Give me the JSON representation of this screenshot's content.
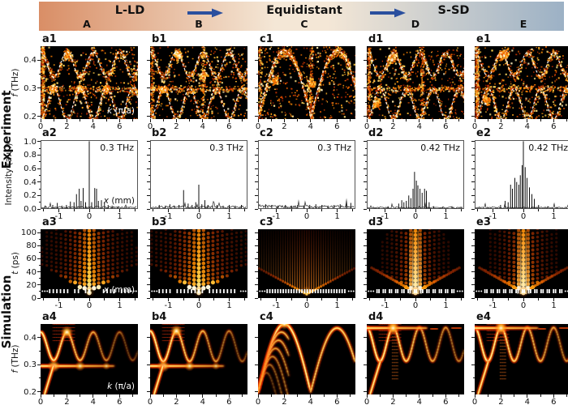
{
  "header": {
    "phases": [
      {
        "label": "L-LD"
      },
      {
        "label": "Equidistant"
      },
      {
        "label": "S-SD"
      }
    ],
    "letters": [
      "A",
      "B",
      "C",
      "D",
      "E"
    ],
    "arrow_color": "#2a4f9e",
    "gradient": [
      "#d98e66",
      "#f4e7d6",
      "#9cb1c5"
    ]
  },
  "side_labels": {
    "experiment": "Experiment",
    "simulation": "Simulation"
  },
  "axes": {
    "rows": [
      {
        "yvar": "f",
        "yrest": " (THz)",
        "ytickvals": [
          0.4,
          0.3,
          0.2
        ],
        "yticks": [
          "0.4",
          "0.3",
          "0.2"
        ],
        "ylim": [
          0.19,
          0.45
        ],
        "xtickvals": [
          0,
          2,
          4,
          6
        ],
        "xticks": [
          "0",
          "2",
          "4",
          "6"
        ],
        "xlim": [
          0,
          7.4
        ],
        "xvar": "k",
        "xrest": " (π/a)"
      },
      {
        "yvar": "",
        "yrest": "Intensity (a.u.)",
        "ytickvals": [
          1.0,
          0.8,
          0.6,
          0.4,
          0.2,
          0.0
        ],
        "yticks": [
          "1.0",
          "0.8",
          "0.6",
          "0.4",
          "0.2",
          "0.0"
        ],
        "ylim": [
          0,
          1.02
        ],
        "xtickvals": [
          -1,
          0,
          1
        ],
        "xticks": [
          "-1",
          "0",
          "1"
        ],
        "xlim": [
          -1.6,
          1.6
        ],
        "xvar": "x",
        "xrest": " (mm)"
      },
      {
        "yvar": "t",
        "yrest": " (ps)",
        "ytickvals": [
          100,
          80,
          60,
          40,
          20,
          0
        ],
        "yticks": [
          "100",
          "80",
          "60",
          "40",
          "20",
          "0"
        ],
        "ylim": [
          0,
          105
        ],
        "xtickvals": [
          -1,
          0,
          1
        ],
        "xticks": [
          "-1",
          "0",
          "1"
        ],
        "xlim": [
          -1.6,
          1.6
        ],
        "xvar": "x",
        "xrest": " (mm)"
      },
      {
        "yvar": "f",
        "yrest": " (THz)",
        "ytickvals": [
          0.4,
          0.3,
          0.2
        ],
        "yticks": [
          "0.4",
          "0.3",
          "0.2"
        ],
        "ylim": [
          0.19,
          0.45
        ],
        "xtickvals": [
          0,
          2,
          4,
          6
        ],
        "xticks": [
          "0",
          "2",
          "4",
          "6"
        ],
        "xlim": [
          0,
          7.4
        ],
        "xvar": "k",
        "xrest": " (π/a)"
      }
    ]
  },
  "chart_data": [
    {
      "label": "a1",
      "row": 1,
      "col": 0,
      "type": "heatmap",
      "style": "exp_dispersion",
      "seed": 101,
      "hband": true,
      "curves": [
        {
          "kind": "cos",
          "base": 0.385,
          "amp": 0.045,
          "phase": 0
        },
        {
          "kind": "cos",
          "base": 0.245,
          "amp": 0.055,
          "phase": 1
        }
      ],
      "columns": [
        0.12
      ],
      "hot": [
        [
          0.9,
          0.3
        ],
        [
          2.9,
          0.3
        ],
        [
          4.9,
          0.3
        ],
        [
          2.0,
          0.42
        ]
      ],
      "noise": 1500
    },
    {
      "label": "b1",
      "row": 1,
      "col": 1,
      "type": "heatmap",
      "style": "exp_dispersion",
      "seed": 102,
      "hband": true,
      "curves": [
        {
          "kind": "cos",
          "base": 0.385,
          "amp": 0.045,
          "phase": 0
        },
        {
          "kind": "cos",
          "base": 0.245,
          "amp": 0.055,
          "phase": 1
        }
      ],
      "columns": [
        0.12,
        4.0
      ],
      "hot": [
        [
          2.0,
          0.42
        ],
        [
          0.9,
          0.3
        ],
        [
          4.0,
          0.35
        ]
      ],
      "noise": 1500
    },
    {
      "label": "c1",
      "row": 1,
      "col": 2,
      "type": "heatmap",
      "style": "exp_dispersion",
      "seed": 103,
      "hband": false,
      "curves": [
        {
          "kind": "arch",
          "base": 0.2,
          "amp": 0.235,
          "period": 4
        }
      ],
      "columns": [
        0.12,
        4.0
      ],
      "hot": [
        [
          4.0,
          0.32
        ],
        [
          1.2,
          0.33
        ]
      ],
      "noise": 1400
    },
    {
      "label": "d1",
      "row": 1,
      "col": 3,
      "type": "heatmap",
      "style": "exp_dispersion",
      "seed": 104,
      "hband": true,
      "curves": [
        {
          "kind": "cos",
          "base": 0.385,
          "amp": 0.042,
          "phase": 0
        },
        {
          "kind": "cos",
          "base": 0.245,
          "amp": 0.055,
          "phase": 1
        }
      ],
      "columns": [
        0.12,
        4.2
      ],
      "hot": [
        [
          1.9,
          0.41
        ],
        [
          0.7,
          0.25
        ]
      ],
      "noise": 1500
    },
    {
      "label": "e1",
      "row": 1,
      "col": 4,
      "type": "heatmap",
      "style": "exp_dispersion",
      "seed": 105,
      "hband": true,
      "curves": [
        {
          "kind": "cos",
          "base": 0.385,
          "amp": 0.042,
          "phase": 0
        },
        {
          "kind": "cos",
          "base": 0.245,
          "amp": 0.055,
          "phase": 1
        }
      ],
      "columns": [
        0.12
      ],
      "hot": [
        [
          2.0,
          0.42
        ],
        [
          2.3,
          0.43
        ],
        [
          0.8,
          0.26
        ]
      ],
      "noise": 1600
    },
    {
      "label": "a2",
      "row": 2,
      "col": 0,
      "type": "line",
      "style": "line_spectrum",
      "seed": 201,
      "annotation": "0.3 THz",
      "noisefloor": 0.03,
      "vline": 0,
      "spikes": [
        [
          -1.45,
          0.05
        ],
        [
          -1.2,
          0.06
        ],
        [
          -1.05,
          0.09
        ],
        [
          -0.9,
          0.05
        ],
        [
          -0.75,
          0.06
        ],
        [
          -0.62,
          0.11
        ],
        [
          -0.5,
          0.1
        ],
        [
          -0.42,
          0.22
        ],
        [
          -0.33,
          0.3
        ],
        [
          -0.27,
          0.12
        ],
        [
          -0.2,
          0.31
        ],
        [
          -0.12,
          0.1
        ],
        [
          0,
          1.0
        ],
        [
          0.08,
          0.1
        ],
        [
          0.18,
          0.31
        ],
        [
          0.24,
          0.3
        ],
        [
          0.3,
          0.12
        ],
        [
          0.4,
          0.13
        ],
        [
          0.5,
          0.1
        ],
        [
          0.62,
          0.06
        ],
        [
          0.75,
          0.05
        ],
        [
          0.95,
          0.04
        ],
        [
          1.2,
          0.03
        ]
      ]
    },
    {
      "label": "b2",
      "row": 2,
      "col": 1,
      "type": "line",
      "style": "line_spectrum",
      "seed": 202,
      "annotation": "0.3 THz",
      "noisefloor": 0.035,
      "vline": null,
      "spikes": [
        [
          -1.3,
          0.06
        ],
        [
          -1.1,
          0.05
        ],
        [
          -0.95,
          0.07
        ],
        [
          -0.8,
          0.05
        ],
        [
          -0.65,
          0.06
        ],
        [
          -0.5,
          0.28
        ],
        [
          -0.35,
          0.08
        ],
        [
          -0.22,
          0.06
        ],
        [
          -0.1,
          0.1
        ],
        [
          0,
          0.36
        ],
        [
          0.1,
          0.07
        ],
        [
          0.2,
          0.13
        ],
        [
          0.3,
          0.06
        ],
        [
          0.45,
          0.05
        ],
        [
          0.6,
          0.06
        ],
        [
          0.8,
          0.05
        ],
        [
          1.0,
          0.06
        ],
        [
          1.2,
          0.05
        ],
        [
          1.4,
          0.06
        ]
      ]
    },
    {
      "label": "c2",
      "row": 2,
      "col": 2,
      "type": "line",
      "style": "line_spectrum",
      "seed": 203,
      "annotation": "0.3 THz",
      "noisefloor": 0.04,
      "vline": null,
      "spikes": [
        [
          -1.35,
          0.07
        ],
        [
          -1.15,
          0.06
        ],
        [
          -0.95,
          0.05
        ],
        [
          -0.7,
          0.06
        ],
        [
          -0.5,
          0.05
        ],
        [
          -0.3,
          0.06
        ],
        [
          -0.1,
          0.05
        ],
        [
          0.1,
          0.06
        ],
        [
          0.3,
          0.07
        ],
        [
          0.5,
          0.06
        ],
        [
          0.7,
          0.05
        ],
        [
          0.9,
          0.06
        ],
        [
          1.1,
          0.07
        ],
        [
          1.3,
          0.08
        ],
        [
          1.45,
          0.09
        ]
      ]
    },
    {
      "label": "d2",
      "row": 2,
      "col": 3,
      "type": "line",
      "style": "line_spectrum",
      "seed": 204,
      "annotation": "0.42 THz",
      "noisefloor": 0.025,
      "vline": null,
      "spikes": [
        [
          -0.9,
          0.04
        ],
        [
          -0.55,
          0.08
        ],
        [
          -0.45,
          0.13
        ],
        [
          -0.38,
          0.1
        ],
        [
          -0.3,
          0.12
        ],
        [
          -0.22,
          0.2
        ],
        [
          -0.15,
          0.16
        ],
        [
          -0.08,
          0.3
        ],
        [
          -0.03,
          0.55
        ],
        [
          0.03,
          0.42
        ],
        [
          0.08,
          0.35
        ],
        [
          0.15,
          0.3
        ],
        [
          0.22,
          0.24
        ],
        [
          0.3,
          0.3
        ],
        [
          0.36,
          0.27
        ],
        [
          0.45,
          0.1
        ],
        [
          0.6,
          0.04
        ],
        [
          0.9,
          0.03
        ],
        [
          1.2,
          0.04
        ]
      ]
    },
    {
      "label": "e2",
      "row": 2,
      "col": 4,
      "type": "line",
      "style": "line_spectrum",
      "seed": 205,
      "annotation": "0.42 THz",
      "noisefloor": 0.025,
      "vline": 0,
      "spikes": [
        [
          -0.75,
          0.06
        ],
        [
          -0.6,
          0.12
        ],
        [
          -0.5,
          0.1
        ],
        [
          -0.42,
          0.36
        ],
        [
          -0.36,
          0.3
        ],
        [
          -0.28,
          0.46
        ],
        [
          -0.22,
          0.4
        ],
        [
          -0.15,
          0.36
        ],
        [
          -0.1,
          0.5
        ],
        [
          -0.04,
          0.65
        ],
        [
          0,
          1.0
        ],
        [
          0.06,
          0.62
        ],
        [
          0.12,
          0.46
        ],
        [
          0.2,
          0.32
        ],
        [
          0.28,
          0.22
        ],
        [
          0.36,
          0.15
        ],
        [
          0.5,
          0.06
        ],
        [
          0.8,
          0.04
        ],
        [
          1.1,
          0.03
        ]
      ]
    },
    {
      "label": "a3",
      "row": 3,
      "col": 0,
      "type": "heatmap",
      "style": "sim_field",
      "mode": "discrete",
      "decay": 0.55,
      "lattice": "sparse",
      "seed": 301
    },
    {
      "label": "b3",
      "row": 3,
      "col": 1,
      "type": "heatmap",
      "style": "sim_field",
      "mode": "discrete",
      "decay": 0.62,
      "lattice": "sparse",
      "seed": 302
    },
    {
      "label": "c3",
      "row": 3,
      "col": 2,
      "type": "heatmap",
      "style": "sim_field",
      "mode": "stripes",
      "decay": 0.95,
      "lattice": "dense",
      "seed": 303
    },
    {
      "label": "d3",
      "row": 3,
      "col": 3,
      "type": "heatmap",
      "style": "sim_field",
      "mode": "localized",
      "decay": 0.4,
      "lattice": "pairs",
      "seed": 304
    },
    {
      "label": "e3",
      "row": 3,
      "col": 4,
      "type": "heatmap",
      "style": "sim_field",
      "mode": "localized",
      "decay": 0.42,
      "lattice": "pairs",
      "seed": 305
    },
    {
      "label": "a4",
      "row": 4,
      "col": 0,
      "type": "heatmap",
      "style": "sim_dispersion",
      "seed": 401,
      "features": {
        "band": {
          "base": 0.368,
          "amp": 0.052,
          "phase": 0,
          "fade": 3.0
        },
        "flat": {
          "f": 0.295,
          "xmax": 5.6,
          "blobs": [
            1,
            3,
            5
          ]
        },
        "diag": [
          [
            0.3,
            0.19
          ],
          [
            1.0,
            0.3
          ]
        ],
        "comb": "rows"
      }
    },
    {
      "label": "b4",
      "row": 4,
      "col": 1,
      "type": "heatmap",
      "style": "sim_dispersion",
      "seed": 402,
      "features": {
        "band": {
          "base": 0.368,
          "amp": 0.056,
          "phase": 0,
          "fade": 3.4
        },
        "flat": {
          "f": 0.295,
          "xmax": 5.6,
          "blobs": [
            1,
            3,
            5
          ]
        },
        "diag": [
          [
            0.3,
            0.19
          ],
          [
            1.0,
            0.3
          ]
        ],
        "comb": "rows"
      }
    },
    {
      "label": "c4",
      "row": 4,
      "col": 2,
      "type": "heatmap",
      "style": "sim_dispersion",
      "seed": 403,
      "features": {
        "arches": {
          "base": 0.2,
          "amp": 0.25,
          "period": 4,
          "fade": 5.0
        },
        "rings": true
      }
    },
    {
      "label": "d4",
      "row": 4,
      "col": 3,
      "type": "heatmap",
      "style": "sim_dispersion",
      "seed": 404,
      "features": {
        "band": {
          "base": 0.375,
          "amp": 0.062,
          "phase": 0,
          "fade": 4.0
        },
        "flat": {
          "f": 0.435,
          "xmax": 4.6,
          "blobs": [
            2
          ],
          "topdashes": true
        },
        "diag": [
          [
            0.25,
            0.19
          ],
          [
            1.05,
            0.315
          ]
        ],
        "comb": "both"
      }
    },
    {
      "label": "e4",
      "row": 4,
      "col": 4,
      "type": "heatmap",
      "style": "sim_dispersion",
      "seed": 405,
      "features": {
        "band": {
          "base": 0.375,
          "amp": 0.062,
          "phase": 0,
          "fade": 4.4
        },
        "flat": {
          "f": 0.435,
          "xmax": 4.8,
          "blobs": [
            2
          ],
          "topdashes": true
        },
        "diag": [
          [
            0.25,
            0.19
          ],
          [
            1.05,
            0.315
          ]
        ],
        "comb": "both"
      }
    }
  ]
}
